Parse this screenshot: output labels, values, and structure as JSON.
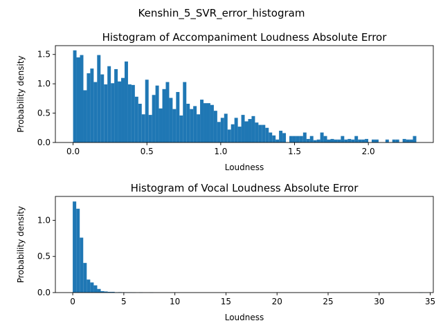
{
  "figure": {
    "suptitle": "Kenshin_5_SVR_error_histogram",
    "bar_color": "#1f77b4"
  },
  "chart_data": [
    {
      "type": "bar",
      "title": "Histogram of Accompaniment Loudness Absolute Error",
      "xlabel": "Loudness",
      "ylabel": "Probability density",
      "xlim": [
        -0.12,
        2.44
      ],
      "ylim": [
        0,
        1.65
      ],
      "xticks": [
        0.0,
        0.5,
        1.0,
        1.5,
        2.0
      ],
      "xtick_labels": [
        "0.0",
        "0.5",
        "1.0",
        "1.5",
        "2.0"
      ],
      "yticks": [
        0.0,
        0.5,
        1.0,
        1.5
      ],
      "ytick_labels": [
        "0.0",
        "0.5",
        "1.0",
        "1.5"
      ],
      "bin_start": 0.0,
      "bin_width": 0.02325,
      "values": [
        1.57,
        1.45,
        1.49,
        0.89,
        1.18,
        1.26,
        1.03,
        1.49,
        1.16,
        0.99,
        1.3,
        1.01,
        1.25,
        1.04,
        1.1,
        1.38,
        0.99,
        0.98,
        0.78,
        0.66,
        0.48,
        1.07,
        0.47,
        0.81,
        0.97,
        0.58,
        0.91,
        1.03,
        0.76,
        0.57,
        0.86,
        0.46,
        1.03,
        0.66,
        0.57,
        0.62,
        0.48,
        0.73,
        0.67,
        0.67,
        0.64,
        0.54,
        0.35,
        0.42,
        0.49,
        0.22,
        0.31,
        0.42,
        0.27,
        0.47,
        0.36,
        0.4,
        0.45,
        0.34,
        0.3,
        0.3,
        0.25,
        0.17,
        0.12,
        0.05,
        0.2,
        0.16,
        0.0,
        0.11,
        0.11,
        0.11,
        0.11,
        0.17,
        0.06,
        0.11,
        0.04,
        0.05,
        0.17,
        0.11,
        0.05,
        0.06,
        0.05,
        0.05,
        0.11,
        0.05,
        0.06,
        0.05,
        0.11,
        0.05,
        0.05,
        0.06,
        0.0,
        0.05,
        0.05,
        0.0,
        0.0,
        0.05,
        0.0,
        0.05,
        0.05,
        0.0,
        0.06,
        0.05,
        0.05,
        0.11
      ]
    },
    {
      "type": "bar",
      "title": "Histogram of Vocal Loudness Absolute Error",
      "xlabel": "Loudness",
      "ylabel": "Probability density",
      "xlim": [
        -1.7,
        35.3
      ],
      "ylim": [
        0,
        1.33
      ],
      "xticks": [
        0,
        5,
        10,
        15,
        20,
        25,
        30,
        35
      ],
      "xtick_labels": [
        "0",
        "5",
        "10",
        "15",
        "20",
        "25",
        "30",
        "35"
      ],
      "yticks": [
        0.0,
        0.5,
        1.0
      ],
      "ytick_labels": [
        "0.0",
        "0.5",
        "1.0"
      ],
      "bin_start": 0.0,
      "bin_width": 0.3425,
      "values": [
        1.26,
        1.16,
        0.76,
        0.41,
        0.18,
        0.14,
        0.1,
        0.05,
        0.02,
        0.015,
        0.01,
        0.01,
        0.005,
        0.006,
        0.004,
        0.003,
        0.004,
        0.002,
        0.0,
        0.003,
        0.0,
        0.0,
        0.002,
        0.0,
        0.0,
        0.0,
        0.0,
        0.0,
        0.0,
        0.0,
        0.0,
        0.0,
        0.0,
        0.0,
        0.0,
        0.0,
        0.0,
        0.0,
        0.0,
        0.0,
        0.0,
        0.0,
        0.0,
        0.0,
        0.0,
        0.0,
        0.0,
        0.0,
        0.0,
        0.0,
        0.0,
        0.0,
        0.0,
        0.0,
        0.0,
        0.0,
        0.0,
        0.0,
        0.0,
        0.0,
        0.0,
        0.0,
        0.0,
        0.0,
        0.0,
        0.0,
        0.0,
        0.0,
        0.0,
        0.0,
        0.0,
        0.0,
        0.0,
        0.0,
        0.0,
        0.0,
        0.0,
        0.0,
        0.0,
        0.0,
        0.0,
        0.0,
        0.0,
        0.0,
        0.0,
        0.0,
        0.0,
        0.0,
        0.0,
        0.0,
        0.0,
        0.0,
        0.0,
        0.0,
        0.0,
        0.0,
        0.0,
        0.0,
        0.0,
        0.001
      ]
    }
  ]
}
